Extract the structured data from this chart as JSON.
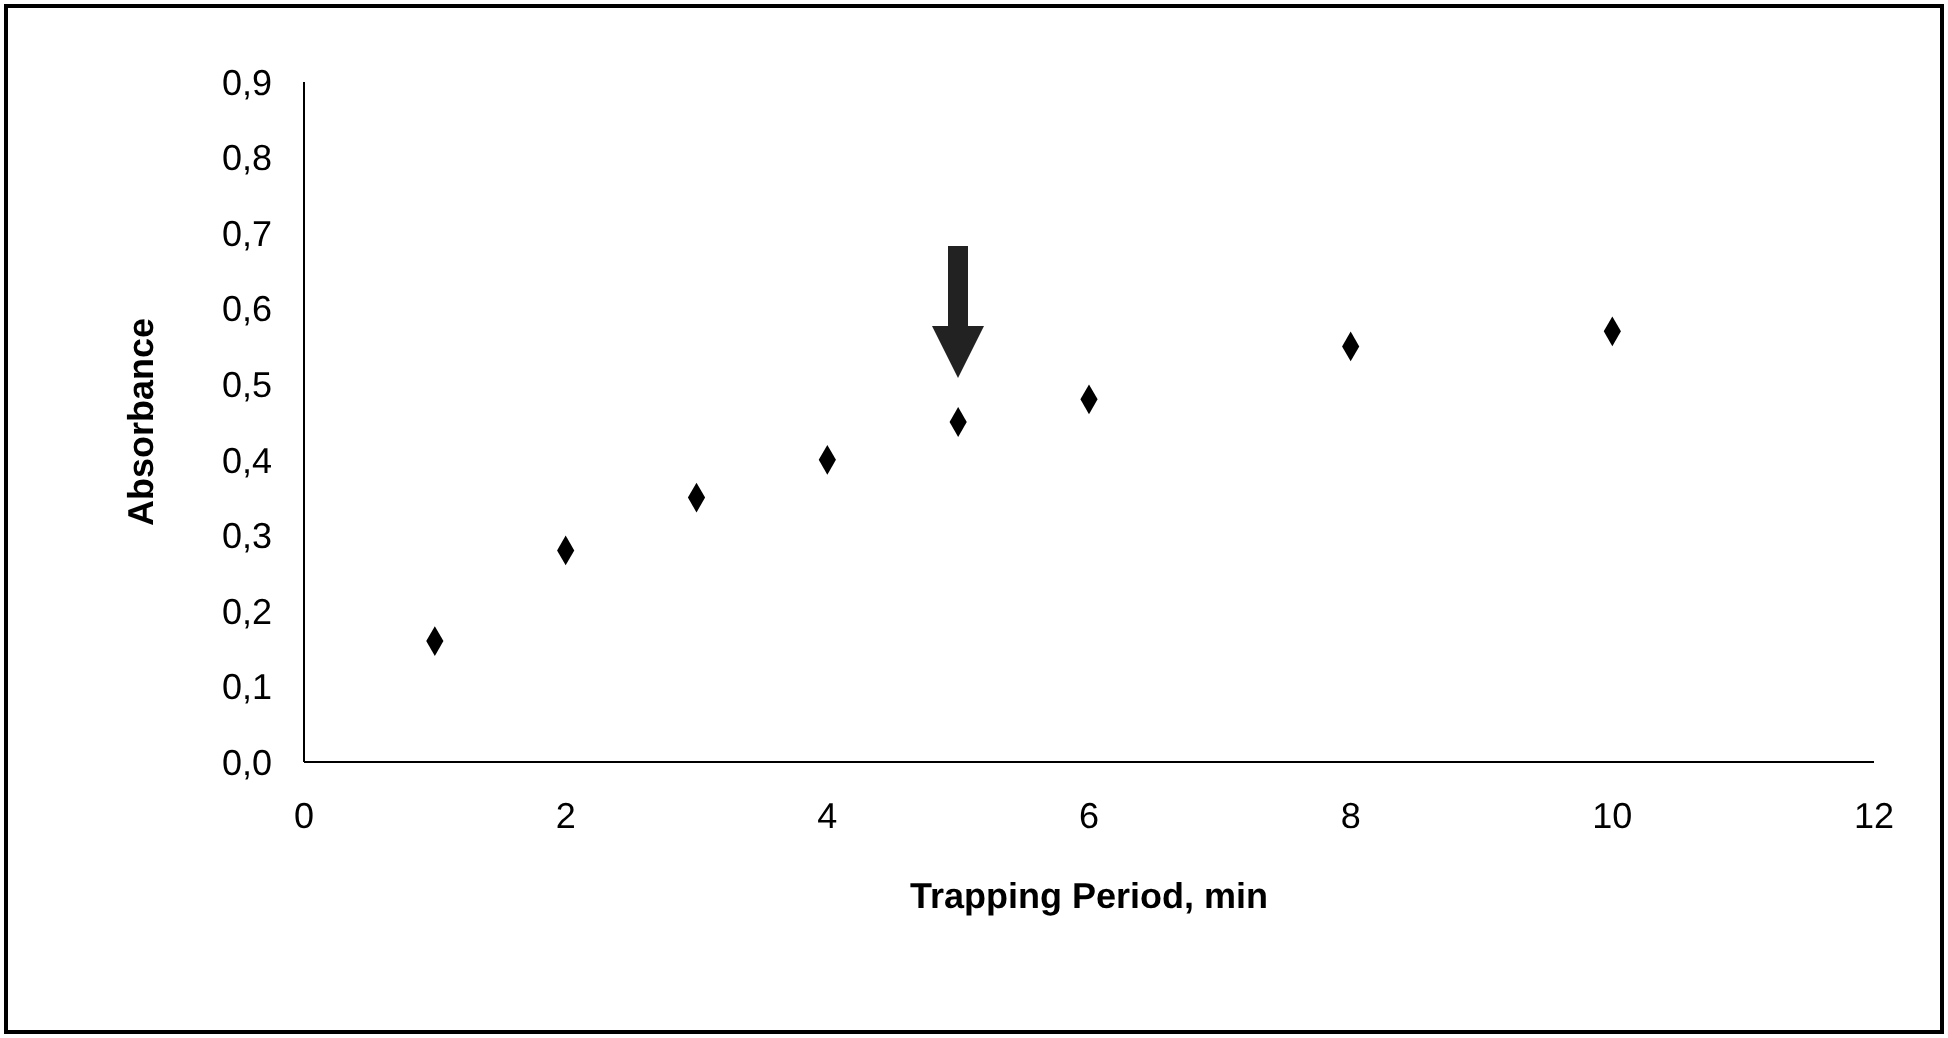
{
  "chart_data": {
    "type": "scatter",
    "xlabel": "Trapping Period, min",
    "ylabel": "Absorbance",
    "x": [
      1,
      2,
      3,
      4,
      5,
      6,
      8,
      10
    ],
    "series": [
      {
        "color": "#000000",
        "values": [
          0.16,
          0.28,
          0.35,
          0.4,
          0.45,
          0.48,
          0.55,
          0.57
        ]
      }
    ],
    "xlim": [
      0,
      12
    ],
    "xticks": [
      0,
      2,
      4,
      6,
      8,
      10,
      12
    ],
    "ylim": [
      0,
      0.9
    ],
    "yticks": [
      {
        "value": 0,
        "label": "0,0"
      },
      {
        "value": 0.1,
        "label": "0,1"
      },
      {
        "value": 0.2,
        "label": "0,2"
      },
      {
        "value": 0.3,
        "label": "0,3"
      },
      {
        "value": 0.4,
        "label": "0,4"
      },
      {
        "value": 0.5,
        "label": "0,5"
      },
      {
        "value": 0.6,
        "label": "0,6"
      },
      {
        "value": 0.7,
        "label": "0,7"
      },
      {
        "value": 0.8,
        "label": "0,8"
      },
      {
        "value": 0.9,
        "label": "0,9"
      }
    ],
    "marker": "diamond",
    "grid": false,
    "legend": false
  }
}
